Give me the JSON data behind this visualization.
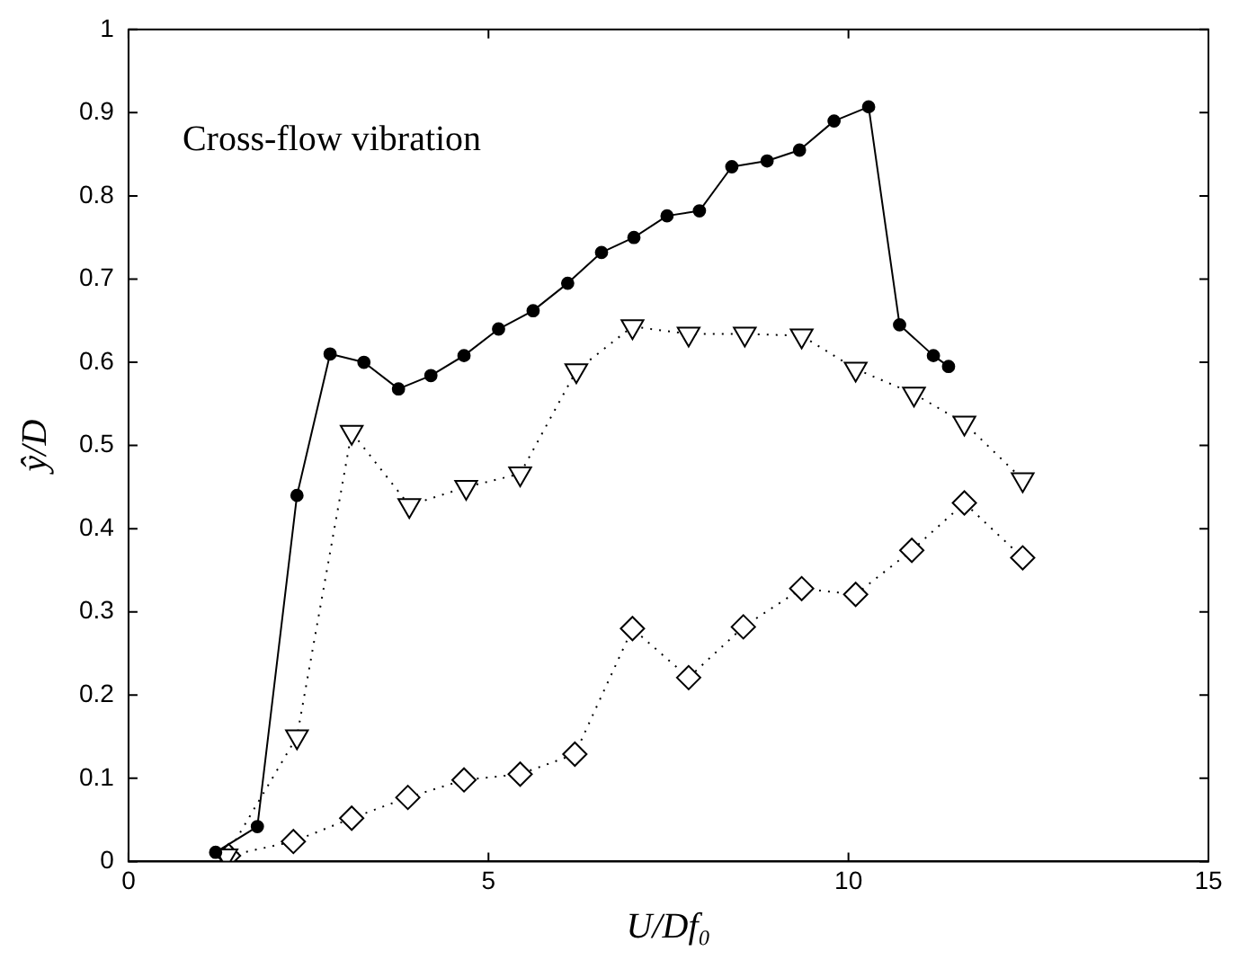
{
  "chart_data": {
    "type": "line",
    "xlabel": "U/Df₀",
    "ylabel": "ŷ/D",
    "annotations": [
      "Cross-flow vibration"
    ],
    "xlim": [
      0,
      15
    ],
    "xticks": [
      0,
      5,
      10,
      15
    ],
    "ylim": [
      0,
      1
    ],
    "yticks": [
      0,
      0.1,
      0.2,
      0.3,
      0.4,
      0.5,
      0.6,
      0.7,
      0.8,
      0.9,
      1
    ],
    "grid": false,
    "legend": false,
    "series": [
      {
        "color": "#000000",
        "marker": "circle",
        "line_style": "solid",
        "x": [
          1.21,
          1.79,
          2.34,
          2.8,
          3.27,
          3.75,
          4.2,
          4.66,
          5.14,
          5.62,
          6.1,
          6.57,
          7.02,
          7.48,
          7.93,
          8.38,
          8.87,
          9.32,
          9.8,
          10.28,
          10.71,
          11.18,
          11.39
        ],
        "values": [
          0.011,
          0.042,
          0.44,
          0.61,
          0.6,
          0.568,
          0.584,
          0.608,
          0.64,
          0.662,
          0.695,
          0.732,
          0.75,
          0.776,
          0.782,
          0.835,
          0.842,
          0.855,
          0.89,
          0.907,
          0.645,
          0.608,
          0.595
        ]
      },
      {
        "color": "#000000",
        "marker": "triangle",
        "line_style": "dotted",
        "x": [
          1.36,
          2.34,
          3.1,
          3.9,
          4.69,
          5.44,
          6.22,
          7.0,
          7.78,
          8.56,
          9.35,
          10.1,
          10.91,
          11.61,
          12.42
        ],
        "values": [
          0.007,
          0.15,
          0.516,
          0.428,
          0.45,
          0.466,
          0.59,
          0.643,
          0.634,
          0.634,
          0.632,
          0.592,
          0.562,
          0.527,
          0.459
        ]
      },
      {
        "color": "#000000",
        "marker": "diamond",
        "line_style": "dotted",
        "x": [
          1.39,
          2.29,
          3.1,
          3.88,
          4.66,
          5.44,
          6.2,
          7.0,
          7.78,
          8.54,
          9.35,
          10.1,
          10.88,
          11.61,
          12.42
        ],
        "values": [
          0.007,
          0.024,
          0.052,
          0.077,
          0.098,
          0.105,
          0.129,
          0.28,
          0.221,
          0.282,
          0.328,
          0.321,
          0.374,
          0.431,
          0.365
        ]
      }
    ]
  }
}
